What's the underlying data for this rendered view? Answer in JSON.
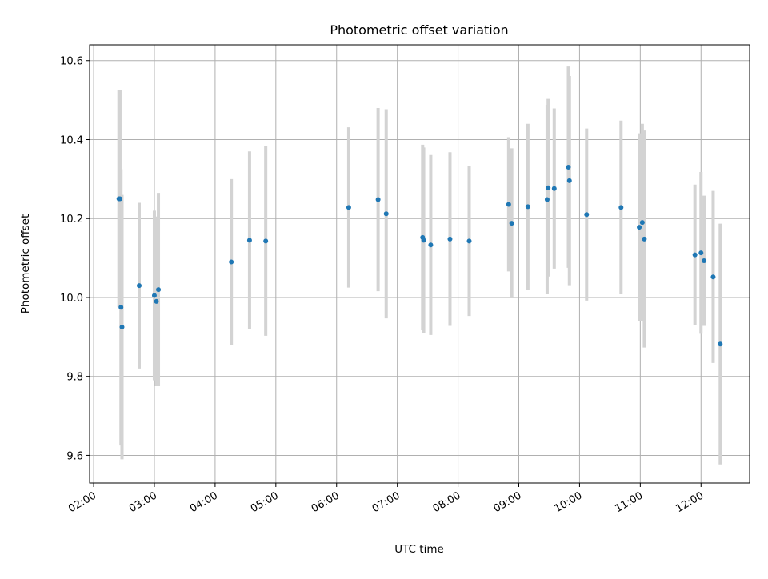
{
  "chart_data": {
    "type": "scatter",
    "title": "Photometric offset variation",
    "xlabel": "UTC time",
    "ylabel": "Photometric offset",
    "x_ticks": [
      "02:00",
      "03:00",
      "04:00",
      "05:00",
      "06:00",
      "07:00",
      "08:00",
      "09:00",
      "10:00",
      "11:00",
      "12:00"
    ],
    "y_ticks": [
      "9.6",
      "9.8",
      "10.0",
      "10.2",
      "10.4",
      "10.6"
    ],
    "xlim": [
      "01:56",
      "12:48"
    ],
    "ylim": [
      9.53,
      10.64
    ],
    "grid": true,
    "marker_color": "#1f77b4",
    "errorbar_color": "#d3d3d3",
    "points": [
      {
        "x": "02:25",
        "y": 10.25,
        "err": 0.275
      },
      {
        "x": "02:26",
        "y": 10.25,
        "err": 0.275
      },
      {
        "x": "02:27",
        "y": 9.975,
        "err": 0.35
      },
      {
        "x": "02:28",
        "y": 9.925,
        "err": 0.335
      },
      {
        "x": "02:45",
        "y": 10.03,
        "err": 0.21
      },
      {
        "x": "03:00",
        "y": 10.005,
        "err": 0.215
      },
      {
        "x": "03:02",
        "y": 9.99,
        "err": 0.215
      },
      {
        "x": "03:04",
        "y": 10.02,
        "err": 0.245
      },
      {
        "x": "04:16",
        "y": 10.09,
        "err": 0.21
      },
      {
        "x": "04:34",
        "y": 10.145,
        "err": 0.225
      },
      {
        "x": "04:50",
        "y": 10.143,
        "err": 0.24
      },
      {
        "x": "06:12",
        "y": 10.228,
        "err": 0.203
      },
      {
        "x": "06:41",
        "y": 10.248,
        "err": 0.232
      },
      {
        "x": "06:49",
        "y": 10.212,
        "err": 0.265
      },
      {
        "x": "07:25",
        "y": 10.152,
        "err": 0.235
      },
      {
        "x": "07:26",
        "y": 10.145,
        "err": 0.235
      },
      {
        "x": "07:33",
        "y": 10.133,
        "err": 0.228
      },
      {
        "x": "07:52",
        "y": 10.148,
        "err": 0.22
      },
      {
        "x": "08:11",
        "y": 10.143,
        "err": 0.19
      },
      {
        "x": "08:50",
        "y": 10.236,
        "err": 0.17
      },
      {
        "x": "08:53",
        "y": 10.188,
        "err": 0.19
      },
      {
        "x": "09:09",
        "y": 10.23,
        "err": 0.21
      },
      {
        "x": "09:28",
        "y": 10.248,
        "err": 0.24
      },
      {
        "x": "09:29",
        "y": 10.278,
        "err": 0.225
      },
      {
        "x": "09:35",
        "y": 10.276,
        "err": 0.203
      },
      {
        "x": "09:49",
        "y": 10.33,
        "err": 0.255
      },
      {
        "x": "09:50",
        "y": 10.296,
        "err": 0.265
      },
      {
        "x": "10:07",
        "y": 10.21,
        "err": 0.218
      },
      {
        "x": "10:41",
        "y": 10.228,
        "err": 0.22
      },
      {
        "x": "10:59",
        "y": 10.178,
        "err": 0.238
      },
      {
        "x": "11:02",
        "y": 10.19,
        "err": 0.25
      },
      {
        "x": "11:04",
        "y": 10.148,
        "err": 0.275
      },
      {
        "x": "11:54",
        "y": 10.108,
        "err": 0.178
      },
      {
        "x": "12:00",
        "y": 10.113,
        "err": 0.205
      },
      {
        "x": "12:03",
        "y": 10.093,
        "err": 0.165
      },
      {
        "x": "12:12",
        "y": 10.052,
        "err": 0.218
      },
      {
        "x": "12:19",
        "y": 9.882,
        "err": 0.305
      }
    ]
  }
}
